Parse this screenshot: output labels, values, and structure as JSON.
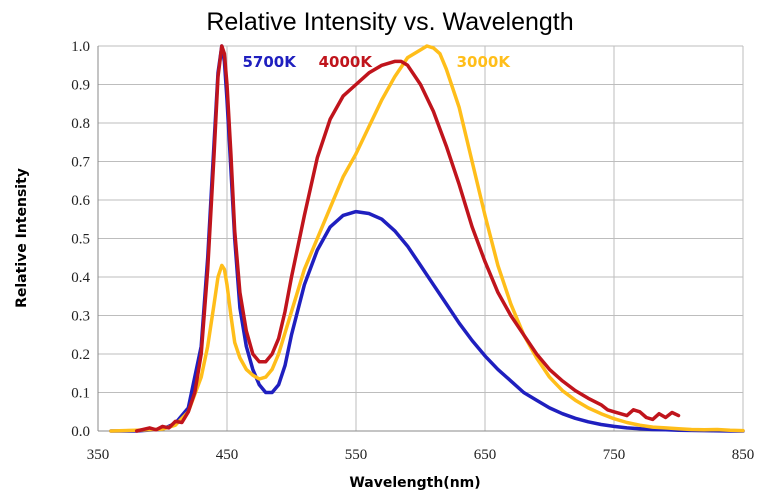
{
  "chart_data": {
    "type": "line",
    "title": "Relative Intensity vs. Wavelength",
    "xlabel": "Wavelength(nm)",
    "ylabel": "Relative Intensity",
    "xlim": [
      350,
      850
    ],
    "ylim": [
      0,
      1.0
    ],
    "xticks": [
      350,
      450,
      550,
      650,
      750,
      850
    ],
    "yticks": [
      0.0,
      0.1,
      0.2,
      0.3,
      0.4,
      0.5,
      0.6,
      0.7,
      0.8,
      0.9,
      1.0
    ],
    "ytick_labels": [
      "0.0",
      "0.1",
      "0.2",
      "0.3",
      "0.4",
      "0.5",
      "0.6",
      "0.7",
      "0.8",
      "0.9",
      "1.0"
    ],
    "grid": true,
    "series": [
      {
        "name": "5700K",
        "color": "#1f1fbf",
        "x": [
          360,
          380,
          400,
          410,
          420,
          430,
          435,
          440,
          443,
          446,
          448,
          450,
          453,
          456,
          460,
          465,
          470,
          475,
          480,
          485,
          490,
          495,
          500,
          510,
          520,
          530,
          540,
          550,
          560,
          570,
          580,
          590,
          600,
          610,
          620,
          630,
          640,
          650,
          660,
          670,
          680,
          690,
          700,
          710,
          720,
          730,
          740,
          750,
          760,
          770,
          780,
          790,
          800,
          820,
          840,
          850
        ],
        "y": [
          0.0,
          0.0,
          0.005,
          0.02,
          0.06,
          0.22,
          0.45,
          0.75,
          0.93,
          1.0,
          0.96,
          0.86,
          0.68,
          0.5,
          0.32,
          0.22,
          0.16,
          0.12,
          0.1,
          0.1,
          0.12,
          0.17,
          0.25,
          0.38,
          0.47,
          0.53,
          0.56,
          0.57,
          0.565,
          0.55,
          0.52,
          0.48,
          0.43,
          0.38,
          0.33,
          0.28,
          0.235,
          0.195,
          0.16,
          0.13,
          0.1,
          0.08,
          0.06,
          0.045,
          0.033,
          0.024,
          0.017,
          0.012,
          0.008,
          0.006,
          0.004,
          0.003,
          0.002,
          0.001,
          0.0,
          0.0
        ]
      },
      {
        "name": "4000K",
        "color": "#c0141c",
        "x": [
          380,
          390,
          395,
          400,
          405,
          410,
          415,
          420,
          425,
          430,
          435,
          440,
          443,
          446,
          448,
          450,
          453,
          456,
          460,
          465,
          470,
          475,
          480,
          485,
          490,
          495,
          500,
          510,
          520,
          530,
          540,
          550,
          560,
          570,
          580,
          585,
          590,
          600,
          610,
          620,
          630,
          640,
          650,
          660,
          670,
          680,
          690,
          700,
          710,
          720,
          730,
          740,
          745,
          750,
          755,
          760,
          765,
          770,
          775,
          780,
          785,
          790,
          795,
          800
        ],
        "y": [
          0.0,
          0.008,
          0.003,
          0.012,
          0.008,
          0.025,
          0.022,
          0.05,
          0.1,
          0.2,
          0.42,
          0.72,
          0.92,
          1.0,
          0.98,
          0.9,
          0.72,
          0.52,
          0.36,
          0.26,
          0.2,
          0.18,
          0.18,
          0.2,
          0.24,
          0.31,
          0.4,
          0.56,
          0.71,
          0.81,
          0.87,
          0.9,
          0.93,
          0.95,
          0.96,
          0.96,
          0.95,
          0.9,
          0.83,
          0.74,
          0.64,
          0.53,
          0.44,
          0.36,
          0.3,
          0.25,
          0.2,
          0.16,
          0.13,
          0.105,
          0.085,
          0.068,
          0.055,
          0.05,
          0.045,
          0.04,
          0.055,
          0.05,
          0.035,
          0.03,
          0.045,
          0.035,
          0.048,
          0.04
        ]
      },
      {
        "name": "3000K",
        "color": "#ffbe1a",
        "x": [
          360,
          380,
          400,
          410,
          420,
          430,
          435,
          440,
          443,
          446,
          448,
          450,
          453,
          456,
          460,
          465,
          470,
          475,
          480,
          485,
          490,
          500,
          510,
          520,
          530,
          540,
          550,
          560,
          570,
          580,
          590,
          600,
          605,
          610,
          615,
          620,
          630,
          640,
          650,
          660,
          670,
          680,
          690,
          700,
          710,
          720,
          730,
          740,
          750,
          760,
          770,
          780,
          790,
          800,
          810,
          820,
          830,
          840,
          850
        ],
        "y": [
          0.0,
          0.002,
          0.005,
          0.015,
          0.05,
          0.14,
          0.22,
          0.33,
          0.4,
          0.43,
          0.42,
          0.38,
          0.3,
          0.23,
          0.19,
          0.16,
          0.145,
          0.135,
          0.14,
          0.16,
          0.2,
          0.31,
          0.42,
          0.5,
          0.58,
          0.66,
          0.72,
          0.79,
          0.86,
          0.92,
          0.97,
          0.99,
          1.0,
          0.995,
          0.98,
          0.94,
          0.84,
          0.7,
          0.56,
          0.43,
          0.33,
          0.25,
          0.19,
          0.14,
          0.105,
          0.08,
          0.06,
          0.045,
          0.032,
          0.022,
          0.015,
          0.01,
          0.008,
          0.006,
          0.004,
          0.003,
          0.004,
          0.002,
          0.001
        ]
      }
    ],
    "annotations": [
      {
        "text": "5700K",
        "x": 462,
        "y": 0.945,
        "color": "#1f1fbf"
      },
      {
        "text": "4000K",
        "x": 521,
        "y": 0.945,
        "color": "#c0141c"
      },
      {
        "text": "3000K",
        "x": 628,
        "y": 0.945,
        "color": "#ffbe1a"
      }
    ]
  }
}
